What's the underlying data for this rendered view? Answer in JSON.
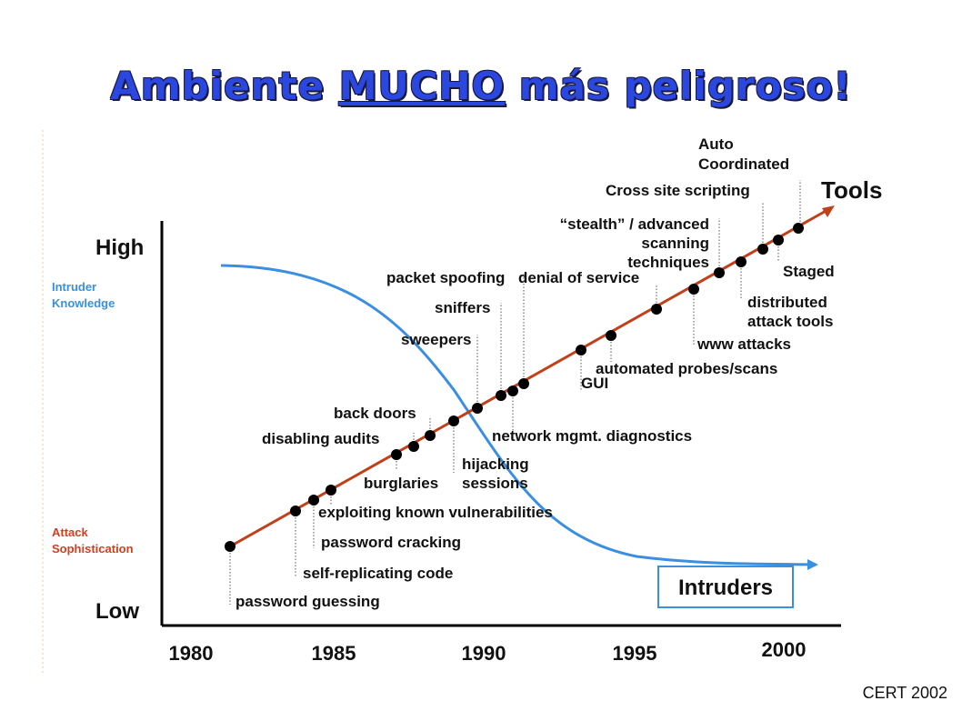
{
  "header": {
    "title": [
      "Ambiente ",
      "MUCHO",
      " más peligroso!"
    ],
    "source": "CERT 2002"
  },
  "axes": {
    "high": "High",
    "low": "Low",
    "intruder_knowledge": [
      "Intruder",
      "Knowledge"
    ],
    "attack_sophistication": [
      "Attack",
      "Sophistication"
    ],
    "years": [
      "1980",
      "1985",
      "1990",
      "1995",
      "2000"
    ]
  },
  "series": {
    "tools": "Tools",
    "intruders": "Intruders"
  },
  "annotations": {
    "password_guessing": [
      "password guessing"
    ],
    "self_replicating_code": [
      "self-replicating code"
    ],
    "password_cracking": [
      "password cracking"
    ],
    "exploiting": [
      "exploiting known vulnerabilities"
    ],
    "burglaries": [
      "burglaries"
    ],
    "disabling_audits": [
      "disabling audits"
    ],
    "back_doors": [
      "back doors"
    ],
    "hijacking": [
      "hijacking",
      "sessions"
    ],
    "sweepers": [
      "sweepers"
    ],
    "sniffers": [
      "sniffers"
    ],
    "packet_spoofing": [
      "packet spoofing"
    ],
    "denial_of_service": [
      "denial of service"
    ],
    "network_mgmt": [
      "network mgmt. diagnostics"
    ],
    "gui": [
      "GUI"
    ],
    "automated_probes": [
      "automated probes/scans"
    ],
    "stealth": [
      "“stealth” / advanced",
      "scanning",
      "techniques"
    ],
    "www_attacks": [
      "www attacks"
    ],
    "distributed": [
      "distributed",
      "attack tools"
    ],
    "cross_site": [
      "Cross site scripting"
    ],
    "auto_coordinated": [
      "Auto",
      "Coordinated"
    ],
    "staged": [
      "Staged"
    ]
  }
}
